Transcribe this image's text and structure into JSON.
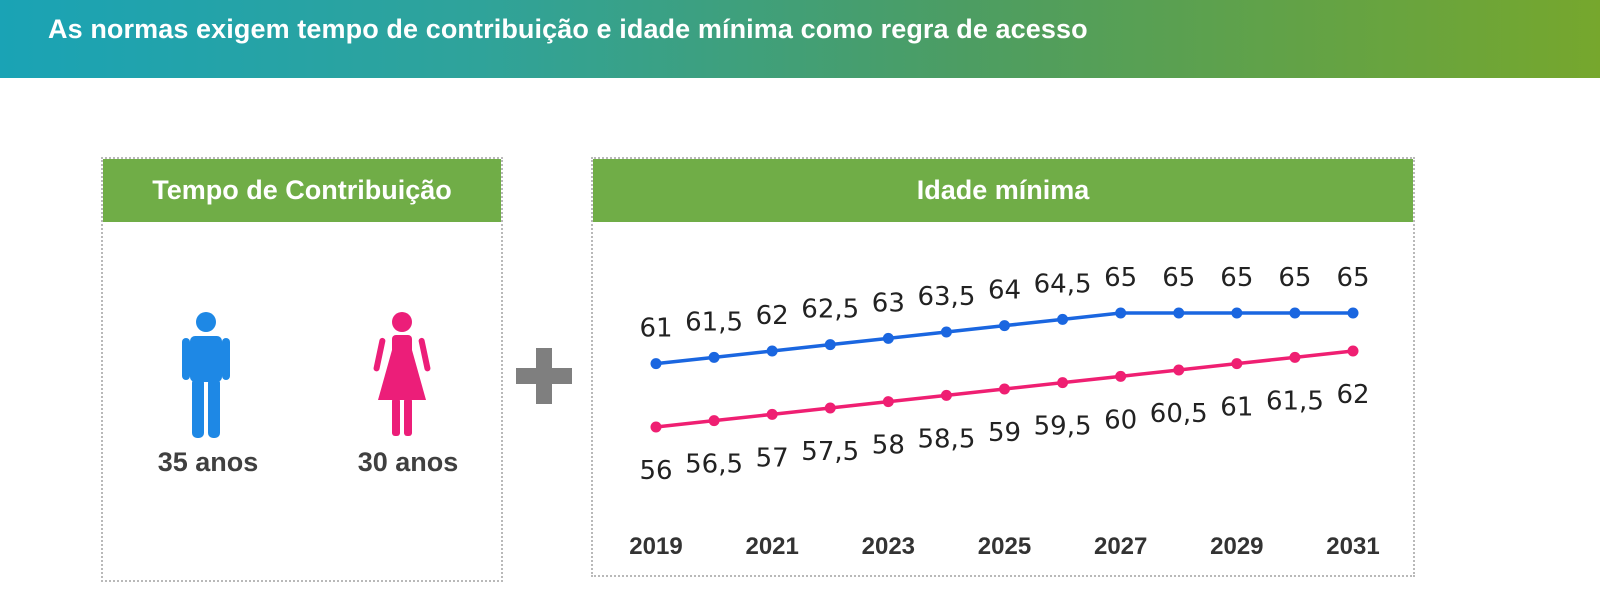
{
  "title": "As normas exigem tempo de contribuição e idade mínima como regra de acesso",
  "left_panel": {
    "header": "Tempo de Contribuição",
    "male_years": "35 anos",
    "female_years": "30 anos"
  },
  "right_panel": {
    "header": "Idade mínima"
  },
  "colors": {
    "banner_start": "#1aa3b5",
    "banner_end": "#76a72d",
    "header_green": "#70ad47",
    "male": "#1e88e5",
    "female": "#ec1e79",
    "plus": "#7f7f7f"
  },
  "chart_data": {
    "type": "line",
    "x": [
      2019,
      2020,
      2021,
      2022,
      2023,
      2024,
      2025,
      2026,
      2027,
      2028,
      2029,
      2030,
      2031
    ],
    "x_ticks": [
      "2019",
      "2021",
      "2023",
      "2025",
      "2027",
      "2029",
      "2031"
    ],
    "series": [
      {
        "name": "Homens",
        "color": "#1a66e0",
        "values": [
          61,
          61.5,
          62,
          62.5,
          63,
          63.5,
          64,
          64.5,
          65,
          65,
          65,
          65,
          65
        ],
        "labels": [
          "61",
          "61,5",
          "62",
          "62,5",
          "63",
          "63,5",
          "64",
          "64,5",
          "65",
          "65",
          "65",
          "65",
          "65"
        ],
        "label_position": "above"
      },
      {
        "name": "Mulheres",
        "color": "#ef1f72",
        "values": [
          56,
          56.5,
          57,
          57.5,
          58,
          58.5,
          59,
          59.5,
          60,
          60.5,
          61,
          61.5,
          62
        ],
        "labels": [
          "56",
          "56,5",
          "57",
          "57,5",
          "58",
          "58,5",
          "59",
          "59,5",
          "60",
          "60,5",
          "61",
          "61,5",
          "62"
        ],
        "label_position": "below"
      }
    ],
    "ylim": [
      55,
      66
    ],
    "grid": false,
    "legend": "none"
  }
}
